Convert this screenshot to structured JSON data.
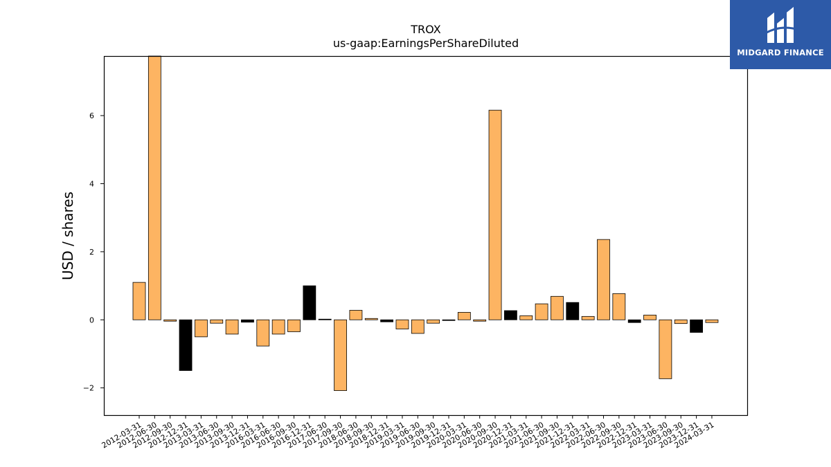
{
  "logo": {
    "brand_name": "MIDGARD FINANCE",
    "icon": "midgard-logo-icon"
  },
  "colors": {
    "primary_bar": "#fdb462",
    "alternate_bar": "#000000",
    "logo_bg": "#2d5aa8"
  },
  "chart_data": {
    "type": "bar",
    "title": "TROX",
    "subtitle": "us-gaap:EarningsPerShareDiluted",
    "xlabel": "",
    "ylabel": "USD / shares",
    "ylim": [
      -2.8,
      7.75
    ],
    "yticks": [
      -2,
      0,
      2,
      4,
      6
    ],
    "grid": false,
    "categories": [
      "2012-03-31",
      "2012-06-30",
      "2012-09-30",
      "2012-12-31",
      "2013-03-31",
      "2013-06-30",
      "2013-09-30",
      "2013-12-31",
      "2016-03-31",
      "2016-06-30",
      "2016-09-30",
      "2016-12-31",
      "2017-06-30",
      "2017-09-30",
      "2018-06-30",
      "2018-09-30",
      "2018-12-31",
      "2019-03-31",
      "2019-06-30",
      "2019-09-30",
      "2019-12-31",
      "2020-03-31",
      "2020-06-30",
      "2020-09-30",
      "2020-12-31",
      "2021-03-31",
      "2021-06-30",
      "2021-09-30",
      "2021-12-31",
      "2022-03-31",
      "2022-06-30",
      "2022-09-30",
      "2022-12-31",
      "2023-03-31",
      "2023-06-30",
      "2023-09-30",
      "2023-12-31",
      "2024-03-31"
    ],
    "values": [
      1.1,
      7.8,
      -0.04,
      -1.49,
      -0.5,
      -0.1,
      -0.42,
      -0.07,
      -0.77,
      -0.42,
      -0.35,
      1.0,
      0.02,
      -2.08,
      0.28,
      0.04,
      -0.06,
      -0.27,
      -0.4,
      -0.1,
      -0.01,
      0.22,
      -0.04,
      6.16,
      0.27,
      0.12,
      0.47,
      0.69,
      0.51,
      0.1,
      2.36,
      0.77,
      -0.08,
      0.14,
      -1.73,
      -0.11,
      -0.37,
      -0.08
    ],
    "alternate_indices": [
      3,
      7,
      11,
      12,
      16,
      20,
      24,
      28,
      32,
      36
    ]
  }
}
